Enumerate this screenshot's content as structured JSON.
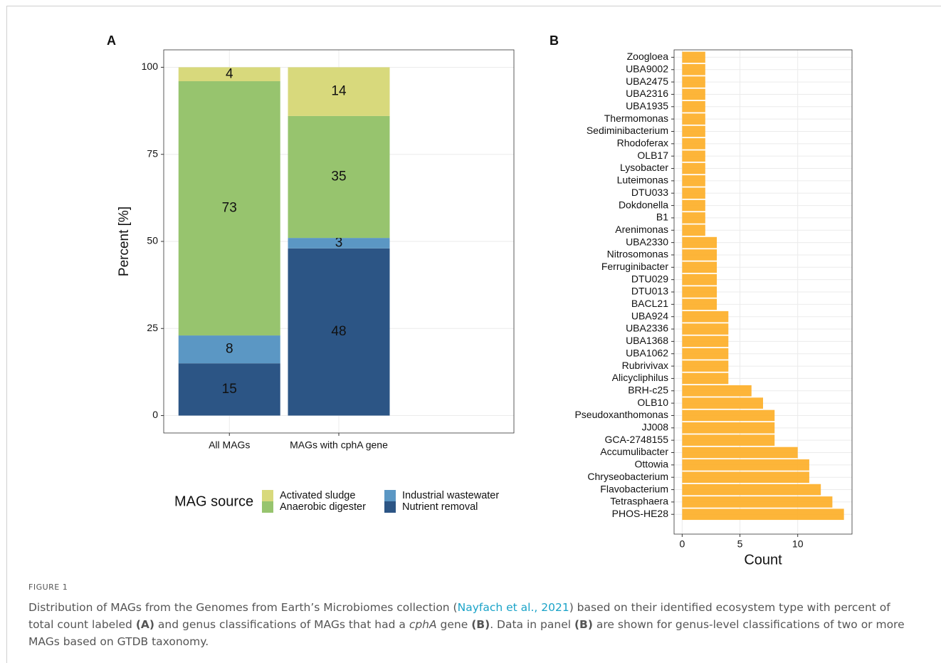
{
  "chart_data": [
    {
      "type": "bar",
      "stacked": true,
      "panel": "A",
      "ylabel": "Percent [%]",
      "categories": [
        "All MAGs",
        "MAGs with cphA gene"
      ],
      "series": [
        {
          "name": "Activated sludge",
          "color": "#d8d97c",
          "values": [
            4,
            14
          ]
        },
        {
          "name": "Anaerobic digester",
          "color": "#97c46e",
          "values": [
            73,
            35
          ]
        },
        {
          "name": "Industrial wastewater",
          "color": "#5b97c4",
          "values": [
            8,
            3
          ]
        },
        {
          "name": "Nutrient removal",
          "color": "#2c5585",
          "values": [
            15,
            48
          ]
        }
      ],
      "ylim": [
        -5,
        105
      ],
      "yticks": [
        0,
        25,
        50,
        75,
        100
      ],
      "grid": true,
      "legend_title": "MAG source",
      "legend": "bottom"
    },
    {
      "type": "bar",
      "horizontal": true,
      "panel": "B",
      "xlabel": "Count",
      "color": "#fdb12e",
      "categories": [
        "Zoogloea",
        "UBA9002",
        "UBA2475",
        "UBA2316",
        "UBA1935",
        "Thermomonas",
        "Sediminibacterium",
        "Rhodoferax",
        "OLB17",
        "Lysobacter",
        "Luteimonas",
        "DTU033",
        "Dokdonella",
        "B1",
        "Arenimonas",
        "UBA2330",
        "Nitrosomonas",
        "Ferruginibacter",
        "DTU029",
        "DTU013",
        "BACL21",
        "UBA924",
        "UBA2336",
        "UBA1368",
        "UBA1062",
        "Rubrivivax",
        "Alicycliphilus",
        "BRH-c25",
        "OLB10",
        "Pseudoxanthomonas",
        "JJ008",
        "GCA-2748155",
        "Accumulibacter",
        "Ottowia",
        "Chryseobacterium",
        "Flavobacterium",
        "Tetrasphaera",
        "PHOS-HE28"
      ],
      "values": [
        2,
        2,
        2,
        2,
        2,
        2,
        2,
        2,
        2,
        2,
        2,
        2,
        2,
        2,
        2,
        3,
        3,
        3,
        3,
        3,
        3,
        4,
        4,
        4,
        4,
        4,
        4,
        6,
        7,
        8,
        8,
        8,
        10,
        11,
        11,
        12,
        13,
        14
      ],
      "xlim": [
        -0.7,
        14.7
      ],
      "xticks": [
        0,
        5,
        10
      ],
      "grid": true
    }
  ],
  "caption": {
    "label": "FIGURE 1",
    "parts": [
      "Distribution of MAGs from the Genomes from Earth’s Microbiomes collection (",
      "Nayfach et al., 2021",
      ") based on their identified ecosystem type with percent of total count labeled ",
      "(A)",
      " and genus classifications of MAGs that had a ",
      "cphA",
      " gene ",
      "(B)",
      ". Data in panel ",
      "(B)",
      " are shown for genus-level classifications of two or more MAGs based on GTDB taxonomy."
    ]
  }
}
